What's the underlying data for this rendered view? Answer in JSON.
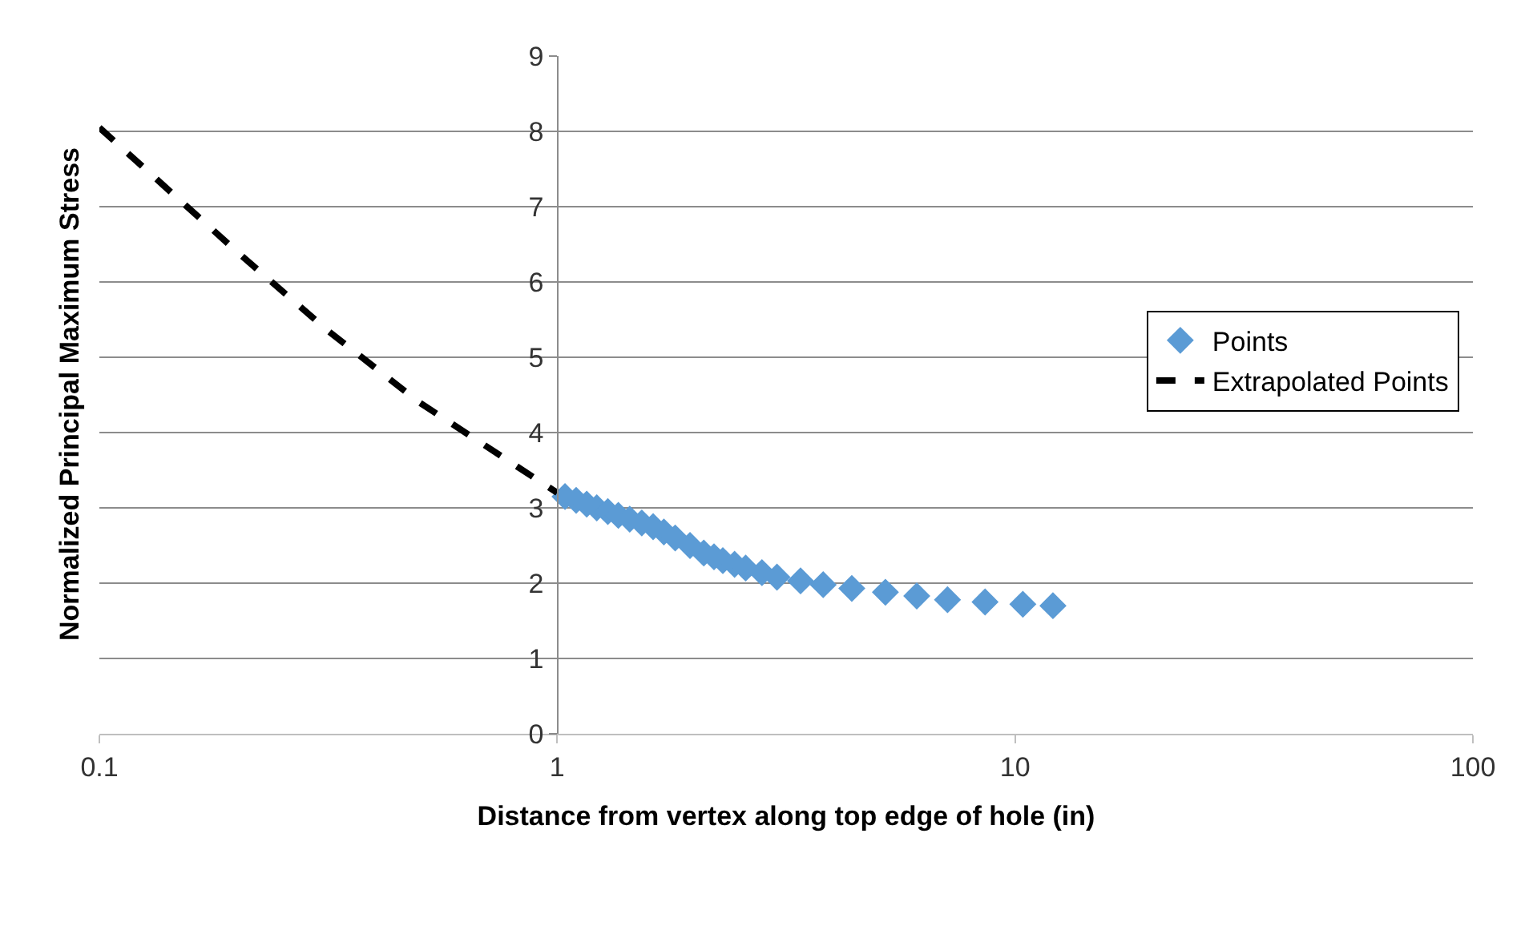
{
  "chart_data": {
    "type": "scatter",
    "xlabel": "Distance from vertex along top edge of hole (in)",
    "ylabel": "Normalized Principal Maximum Stress",
    "log": "x",
    "xlim": [
      0.1,
      100
    ],
    "xticks": [
      0.1,
      1,
      10,
      100
    ],
    "ylim": [
      0,
      9
    ],
    "yticks": [
      0,
      1,
      2,
      3,
      4,
      5,
      6,
      7,
      8,
      9
    ],
    "grid": "y",
    "legend": "right",
    "series": [
      {
        "name": "Points",
        "color": "#5b9bd5",
        "marker": "diamond",
        "x": [
          1.04,
          1.1,
          1.16,
          1.22,
          1.29,
          1.36,
          1.44,
          1.53,
          1.62,
          1.71,
          1.81,
          1.95,
          2.09,
          2.2,
          2.3,
          2.44,
          2.58,
          2.8,
          3.02,
          3.4,
          3.81,
          4.4,
          5.21,
          6.1,
          7.12,
          8.6,
          10.4,
          12.1
        ],
        "values": [
          3.15,
          3.1,
          3.05,
          3.0,
          2.95,
          2.9,
          2.85,
          2.8,
          2.75,
          2.68,
          2.6,
          2.5,
          2.4,
          2.35,
          2.3,
          2.25,
          2.2,
          2.14,
          2.08,
          2.03,
          1.98,
          1.93,
          1.88,
          1.83,
          1.78,
          1.75,
          1.72,
          1.7
        ]
      },
      {
        "name": "Extrapolated Points",
        "color": "#000000",
        "type": "line",
        "line_style": "dashed",
        "marker": "none",
        "x": [
          0.1,
          0.2,
          0.316,
          0.5,
          1.0
        ],
        "values": [
          8.05,
          6.4,
          5.35,
          4.4,
          3.2
        ]
      }
    ]
  }
}
